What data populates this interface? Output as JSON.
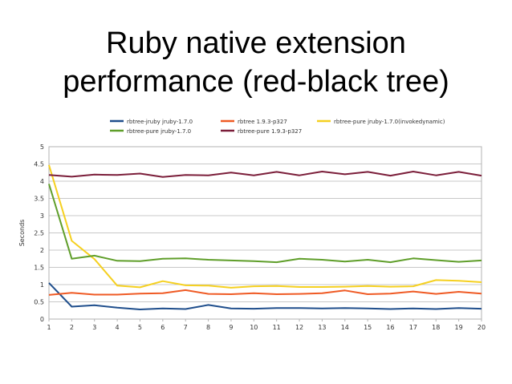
{
  "slide": {
    "title_line1": "Ruby native extension",
    "title_line2": "performance (red-black tree)"
  },
  "chart_data": {
    "type": "line",
    "title": "Ruby native extension performance (red-black tree)",
    "xlabel": "",
    "ylabel": "Seconds",
    "x": [
      1,
      2,
      3,
      4,
      5,
      6,
      7,
      8,
      9,
      10,
      11,
      12,
      13,
      14,
      15,
      16,
      17,
      18,
      19,
      20
    ],
    "ylim": [
      0,
      5
    ],
    "yticks": [
      "0",
      "0.5",
      "1",
      "1.5",
      "2",
      "2.5",
      "3",
      "3.5",
      "4",
      "4.5",
      "5"
    ],
    "grid": "horizontal",
    "legend_position": "top",
    "series": [
      {
        "name": "rbtree-jruby jruby-1.7.0",
        "color": "#1f4e8c",
        "values": [
          1.05,
          0.36,
          0.4,
          0.33,
          0.28,
          0.31,
          0.29,
          0.41,
          0.31,
          0.3,
          0.32,
          0.32,
          0.31,
          0.32,
          0.31,
          0.29,
          0.31,
          0.29,
          0.32,
          0.3
        ]
      },
      {
        "name": "rbtree 1.9.3-p327",
        "color": "#ef5a24",
        "values": [
          0.7,
          0.76,
          0.71,
          0.71,
          0.74,
          0.75,
          0.84,
          0.73,
          0.72,
          0.75,
          0.72,
          0.73,
          0.75,
          0.83,
          0.72,
          0.74,
          0.8,
          0.73,
          0.79,
          0.74
        ]
      },
      {
        "name": "rbtree-pure jruby-1.7.0(invokedynamic)",
        "color": "#f5d020",
        "values": [
          4.47,
          2.27,
          1.74,
          0.97,
          0.92,
          1.1,
          0.98,
          0.97,
          0.91,
          0.95,
          0.96,
          0.93,
          0.93,
          0.94,
          0.96,
          0.94,
          0.95,
          1.13,
          1.11,
          1.07
        ]
      },
      {
        "name": "rbtree-pure jruby-1.7.0",
        "color": "#5f9e2a",
        "values": [
          3.92,
          1.75,
          1.84,
          1.69,
          1.68,
          1.75,
          1.76,
          1.72,
          1.7,
          1.68,
          1.65,
          1.75,
          1.72,
          1.67,
          1.72,
          1.65,
          1.76,
          1.71,
          1.66,
          1.7
        ]
      },
      {
        "name": "rbtree-pure 1.9.3-p327",
        "color": "#7b1e3a",
        "values": [
          4.18,
          4.13,
          4.19,
          4.18,
          4.22,
          4.12,
          4.18,
          4.17,
          4.25,
          4.17,
          4.27,
          4.17,
          4.28,
          4.2,
          4.27,
          4.16,
          4.28,
          4.17,
          4.27,
          4.16
        ]
      }
    ]
  }
}
